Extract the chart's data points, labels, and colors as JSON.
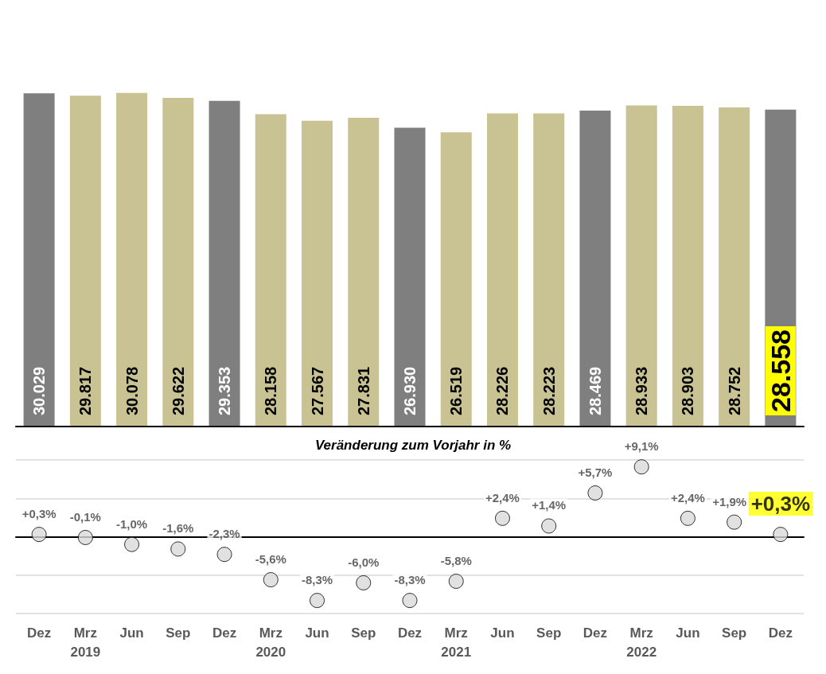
{
  "chart_data": [
    {
      "type": "bar",
      "categories": [
        null,
        null,
        null,
        null,
        null,
        null,
        null,
        null,
        null,
        null,
        null,
        null,
        null,
        null,
        null,
        null,
        null
      ],
      "values": [
        30029,
        29817,
        30078,
        29622,
        29353,
        28158,
        27567,
        27831,
        26930,
        26519,
        28226,
        28223,
        28469,
        28933,
        28903,
        28752,
        28558
      ],
      "colors": [
        "#7f7f7f",
        "#c9c393",
        "#c9c393",
        "#c9c393",
        "#7f7f7f",
        "#c9c393",
        "#c9c393",
        "#c9c393",
        "#7f7f7f",
        "#c9c393",
        "#c9c393",
        "#c9c393",
        "#7f7f7f",
        "#c9c393",
        "#c9c393",
        "#c9c393",
        "#7f7f7f"
      ],
      "value_labels": [
        "30.029",
        "29.817",
        "30.078",
        "29.622",
        "29.353",
        "28.158",
        "27.567",
        "27.831",
        "26.930",
        "26.519",
        "28.226",
        "28.223",
        "28.469",
        "28.933",
        "28.903",
        "28.752",
        "28.558"
      ],
      "tick_labels": false
    },
    {
      "type": "scatter",
      "title": "Veränderung zum Vorjahr in %",
      "categories": [
        "Dez",
        "Mrz\n2019",
        "Jun",
        "Sep",
        "Dez",
        "Mrz\n2020",
        "Jun",
        "Sep",
        "Dez",
        "Mrz\n2021",
        "Jun",
        "Sep",
        "Dez",
        "Mrz\n2022",
        "Jun",
        "Sep",
        "Dez"
      ],
      "values": [
        0.3,
        -0.1,
        -1.0,
        -1.6,
        -2.3,
        -5.6,
        -8.3,
        -6.0,
        -8.3,
        -5.8,
        2.4,
        1.4,
        5.7,
        9.1,
        2.4,
        1.9,
        0.3
      ],
      "value_labels": [
        "+0,3%",
        "-0,1%",
        "-1,0%",
        "-1,6%",
        "-2,3%",
        "-5,6%",
        "-8,3%",
        "-6,0%",
        "-8,3%",
        "-5,8%",
        "+2,4%",
        "+1,4%",
        "+5,7%",
        "+9,1%",
        "+2,4%",
        "+1,9%",
        "+0,3%"
      ],
      "color": "#d9d9d9",
      "marker": "circle",
      "ylim": [
        -10,
        10
      ],
      "yticks": [
        {
          "value": -10,
          "label": null
        },
        {
          "value": -5,
          "label": null
        },
        {
          "value": 0,
          "label": null
        },
        {
          "value": 5,
          "label": null
        },
        {
          "value": 10,
          "label": null
        }
      ],
      "grid": "y",
      "tick_labels": "x"
    }
  ]
}
